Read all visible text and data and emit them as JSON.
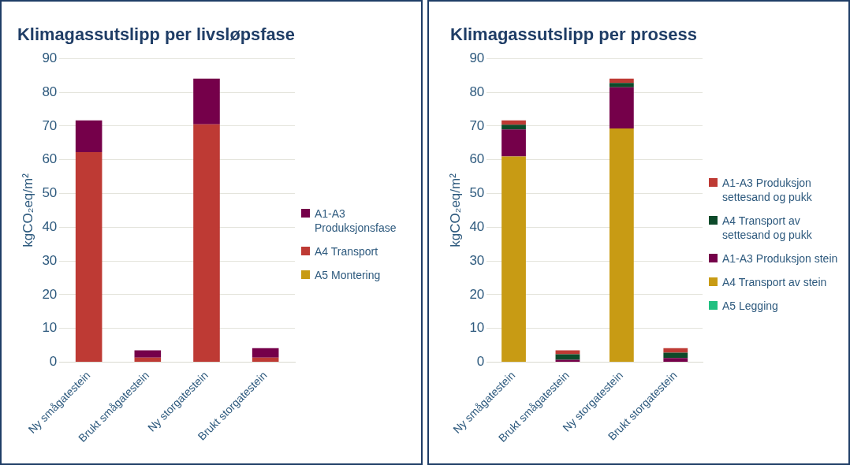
{
  "chart_data": [
    {
      "type": "bar",
      "title": "Klimagassutslipp per livsløpsfase",
      "ylabel": "kgCO₂eq/m²",
      "categories": [
        "Ny smågatestein",
        "Brukt smågatestein",
        "Ny storgatestein",
        "Brukt storgatestein"
      ],
      "stacked": true,
      "ylim": [
        0,
        90
      ],
      "yticks": [
        0,
        10,
        20,
        30,
        40,
        50,
        60,
        70,
        80,
        90
      ],
      "grid": "y",
      "legend": "right",
      "series": [
        {
          "name": "A5 Montering",
          "color": "#c89b14",
          "values": [
            0,
            0,
            0,
            0
          ]
        },
        {
          "name": "A4 Transport",
          "color": "#be3a34",
          "values": [
            62.3,
            1.3,
            70.5,
            1.3
          ]
        },
        {
          "name": "A1-A3 Produksjonsfase",
          "color": "#75004a",
          "values": [
            9.4,
            2.2,
            13.6,
            2.8
          ]
        }
      ]
    },
    {
      "type": "bar",
      "title": "Klimagassutslipp per prosess",
      "ylabel": "kgCO₂eq/m²",
      "categories": [
        "Ny smågatestein",
        "Brukt smågatestein",
        "Ny storgatestein",
        "Brukt storgatestein"
      ],
      "stacked": true,
      "ylim": [
        0,
        90
      ],
      "yticks": [
        0,
        10,
        20,
        30,
        40,
        50,
        60,
        70,
        80,
        90
      ],
      "grid": "y",
      "legend": "right",
      "series": [
        {
          "name": "A5 Legging",
          "color": "#20c080",
          "values": [
            0,
            0,
            0,
            0
          ]
        },
        {
          "name": "A4 Transport av stein",
          "color": "#c89b14",
          "values": [
            61,
            0,
            69.3,
            0
          ]
        },
        {
          "name": "A1-A3 Produksjon stein",
          "color": "#75004a",
          "values": [
            8,
            0.7,
            12.2,
            1.2
          ]
        },
        {
          "name": "A4 Transport av settesand og pukk",
          "color": "#0d4a2a",
          "values": [
            1.4,
            1.6,
            1.3,
            1.6
          ]
        },
        {
          "name": "A1-A3 Produksjon settesand og pukk",
          "color": "#be3a34",
          "values": [
            1.3,
            1.2,
            1.3,
            1.3
          ]
        }
      ]
    }
  ]
}
